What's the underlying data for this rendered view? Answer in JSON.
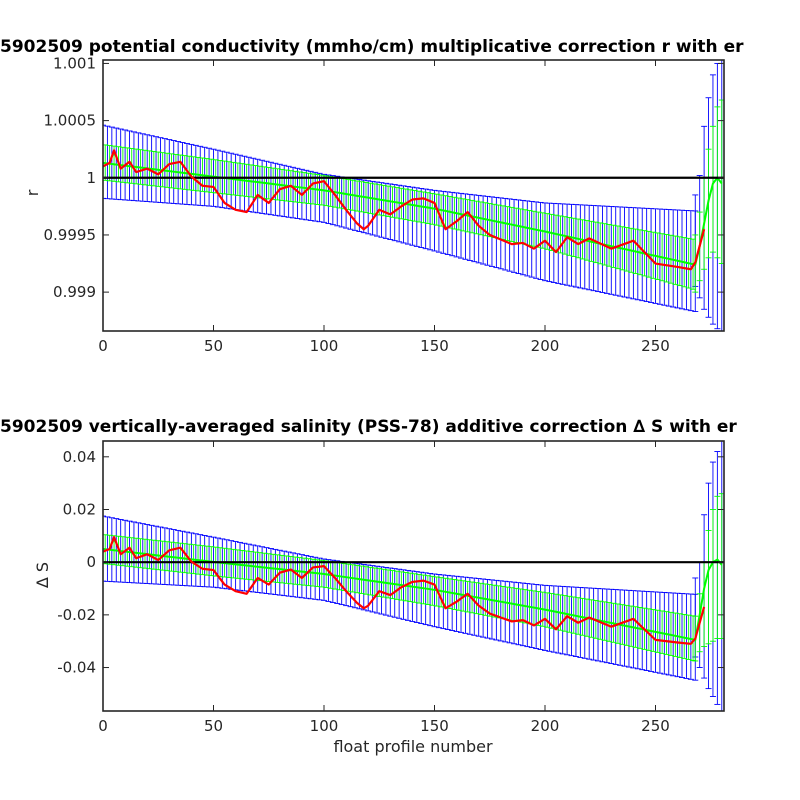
{
  "colors": {
    "float_series": "#0000ff",
    "mapping_series": "#00ff00",
    "correction_line": "#ff0000",
    "reference_line": "#000000"
  },
  "chart_data": [
    {
      "type": "line",
      "title": "5902509 potential conductivity (mmho/cm) multiplicative correction r with er",
      "xlabel": "",
      "ylabel": "r",
      "xlim": [
        0,
        281
      ],
      "ylim": [
        0.99866,
        1.00103
      ],
      "xticks": [
        0,
        50,
        100,
        150,
        200,
        250
      ],
      "xtick_labels": [
        "0",
        "50",
        "100",
        "150",
        "200",
        "250"
      ],
      "yticks": [
        0.999,
        0.9995,
        1,
        1.0005,
        1.001
      ],
      "ytick_labels": [
        "0.999",
        "0.9995",
        "1",
        "1.0005",
        "1.001"
      ],
      "reference_value": 1,
      "tail_x": [
        268,
        270,
        272,
        274,
        276,
        278,
        280
      ],
      "blue_band": {
        "x": [
          0,
          50,
          100,
          150,
          200,
          268
        ],
        "upper": [
          1.00046,
          1.00025,
          1.00003,
          0.99989,
          0.99978,
          0.99971
        ],
        "lower": [
          0.99982,
          0.99975,
          0.99961,
          0.99936,
          0.9991,
          0.99883
        ],
        "tail_upper": [
          0.99985,
          1.00002,
          1.00045,
          1.0007,
          1.0009,
          1.001,
          1.00103
        ],
        "tail_lower": [
          0.99905,
          0.99895,
          0.99885,
          0.99878,
          0.99872,
          0.99868,
          0.99866
        ]
      },
      "green_band": {
        "x": [
          0,
          50,
          100,
          150,
          200,
          268
        ],
        "center": [
          1.00013,
          1.00001,
          0.99989,
          0.99973,
          0.99953,
          0.99924
        ],
        "upper": [
          1.00029,
          1.00016,
          1.00002,
          0.99986,
          0.99969,
          0.99946
        ],
        "lower": [
          0.99998,
          0.99987,
          0.99976,
          0.99959,
          0.99938,
          0.99902
        ],
        "tail_center": [
          0.99924,
          0.9994,
          0.9996,
          0.9998,
          0.99995,
          1.0,
          0.99995
        ],
        "tail_upper": [
          0.9995,
          0.9997,
          1.0,
          1.00025,
          1.00045,
          1.00062,
          1.00068
        ],
        "tail_lower": [
          0.999,
          0.9991,
          0.9992,
          0.9993,
          0.99935,
          0.9993,
          0.99925
        ]
      },
      "correction": {
        "x": [
          0,
          3,
          5,
          8,
          12,
          15,
          20,
          25,
          30,
          35,
          40,
          45,
          50,
          55,
          60,
          65,
          70,
          75,
          80,
          85,
          90,
          95,
          100,
          105,
          110,
          115,
          118,
          120,
          125,
          130,
          135,
          140,
          145,
          150,
          155,
          160,
          165,
          170,
          175,
          180,
          185,
          190,
          195,
          200,
          205,
          210,
          215,
          220,
          230,
          240,
          250,
          260,
          266,
          268,
          272
        ],
        "y": [
          1.0001,
          1.00013,
          1.00024,
          1.00008,
          1.00014,
          1.00005,
          1.00008,
          1.00003,
          1.00012,
          1.00014,
          1.00001,
          0.99993,
          0.99992,
          0.99978,
          0.99972,
          0.9997,
          0.99985,
          0.99978,
          0.9999,
          0.99993,
          0.99985,
          0.99995,
          0.99997,
          0.99985,
          0.99972,
          0.9996,
          0.99955,
          0.99958,
          0.99972,
          0.99968,
          0.99975,
          0.99981,
          0.99982,
          0.99978,
          0.99955,
          0.99962,
          0.9997,
          0.99958,
          0.9995,
          0.99946,
          0.99942,
          0.99943,
          0.99938,
          0.99945,
          0.99935,
          0.99948,
          0.99942,
          0.99947,
          0.99938,
          0.99945,
          0.99925,
          0.99922,
          0.9992,
          0.99926,
          0.99955
        ]
      }
    },
    {
      "type": "line",
      "title": "5902509 vertically-averaged salinity (PSS-78) additive correction ∆ S with er",
      "xlabel": "float profile number",
      "ylabel": "∆ S",
      "xlim": [
        0,
        281
      ],
      "ylim": [
        -0.0565,
        0.046
      ],
      "xticks": [
        0,
        50,
        100,
        150,
        200,
        250
      ],
      "xtick_labels": [
        "0",
        "50",
        "100",
        "150",
        "200",
        "250"
      ],
      "yticks": [
        -0.04,
        -0.02,
        0,
        0.02,
        0.04
      ],
      "ytick_labels": [
        "-0.04",
        "-0.02",
        "0",
        "0.02",
        "0.04"
      ],
      "reference_value": 0,
      "tail_x": [
        268,
        270,
        272,
        274,
        276,
        278,
        280
      ],
      "blue_band": {
        "x": [
          0,
          50,
          100,
          150,
          200,
          268
        ],
        "upper": [
          0.0175,
          0.0095,
          0.0012,
          -0.0045,
          -0.0088,
          -0.0122
        ],
        "lower": [
          -0.0072,
          -0.0095,
          -0.0145,
          -0.0245,
          -0.0335,
          -0.0448
        ],
        "tail_upper": [
          -0.006,
          0.0,
          0.018,
          0.03,
          0.038,
          0.042,
          0.046
        ],
        "tail_lower": [
          -0.036,
          -0.04,
          -0.044,
          -0.048,
          -0.051,
          -0.054,
          -0.0565
        ]
      },
      "green_band": {
        "x": [
          0,
          50,
          100,
          150,
          200,
          268
        ],
        "center": [
          0.005,
          0.0001,
          -0.0045,
          -0.0105,
          -0.018,
          -0.0295
        ],
        "upper": [
          0.0105,
          0.0058,
          0.0006,
          -0.0055,
          -0.0115,
          -0.0205
        ],
        "lower": [
          -0.0005,
          -0.0052,
          -0.0095,
          -0.0165,
          -0.0245,
          -0.0375
        ],
        "tail_center": [
          -0.0295,
          -0.02,
          -0.01,
          -0.003,
          0.0,
          0.001,
          -0.001
        ],
        "tail_upper": [
          -0.0205,
          -0.012,
          0.0,
          0.012,
          0.02,
          0.025,
          0.026
        ],
        "tail_lower": [
          -0.0375,
          -0.034,
          -0.032,
          -0.031,
          -0.03,
          -0.029,
          -0.029
        ]
      },
      "correction": {
        "x": [
          0,
          3,
          5,
          8,
          12,
          15,
          20,
          25,
          30,
          35,
          40,
          45,
          50,
          55,
          60,
          65,
          70,
          75,
          80,
          85,
          90,
          95,
          100,
          105,
          110,
          115,
          118,
          120,
          125,
          130,
          135,
          140,
          145,
          150,
          155,
          160,
          165,
          170,
          175,
          180,
          185,
          190,
          195,
          200,
          205,
          210,
          215,
          220,
          230,
          240,
          250,
          260,
          266,
          268,
          272
        ],
        "y": [
          0.004,
          0.005,
          0.0095,
          0.003,
          0.0055,
          0.0015,
          0.003,
          0.0008,
          0.0045,
          0.0055,
          0.0002,
          -0.0025,
          -0.003,
          -0.0085,
          -0.011,
          -0.012,
          -0.006,
          -0.0085,
          -0.004,
          -0.0028,
          -0.006,
          -0.002,
          -0.0015,
          -0.006,
          -0.011,
          -0.0155,
          -0.0175,
          -0.0165,
          -0.011,
          -0.0125,
          -0.0095,
          -0.0075,
          -0.007,
          -0.0085,
          -0.0175,
          -0.015,
          -0.012,
          -0.0165,
          -0.0195,
          -0.021,
          -0.0225,
          -0.022,
          -0.024,
          -0.0215,
          -0.0255,
          -0.0205,
          -0.023,
          -0.021,
          -0.0245,
          -0.0215,
          -0.0295,
          -0.0305,
          -0.031,
          -0.029,
          -0.017
        ]
      }
    }
  ]
}
